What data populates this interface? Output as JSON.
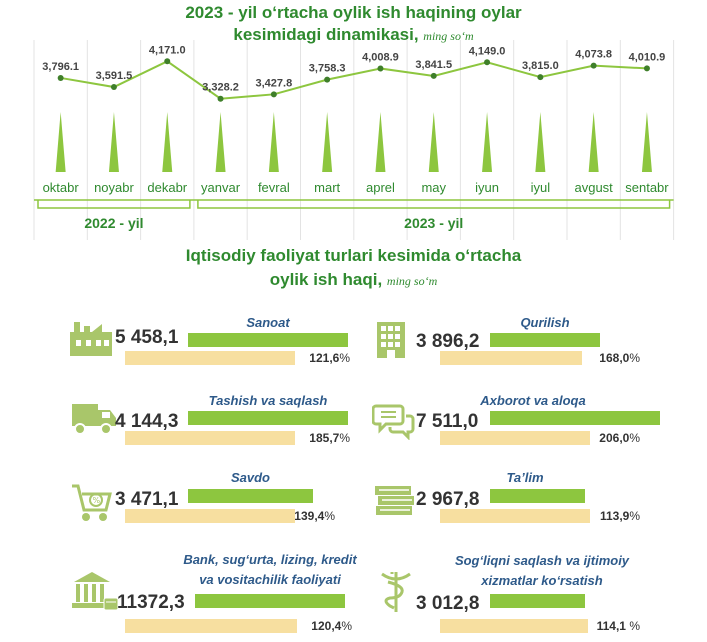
{
  "chart_data": {
    "type": "line",
    "title": "2023 - yil o‘rtacha oylik ish haqining oylar kesimidagi dinamikasi",
    "title_line1": "2023 - yil o‘rtacha oylik ish haqining oylar",
    "title_line2": "kesimidagi dinamikasi,",
    "unit": "ming so‘m",
    "categories": [
      "oktabr",
      "noyabr",
      "dekabr",
      "yanvar",
      "fevral",
      "mart",
      "aprel",
      "may",
      "iyun",
      "iyul",
      "avgust",
      "sentabr"
    ],
    "values": [
      3796.1,
      3591.5,
      4171.0,
      3328.2,
      3427.8,
      3758.3,
      4008.9,
      3841.5,
      4149.0,
      3815.0,
      4073.8,
      4010.9
    ],
    "value_labels": [
      "3,796.1",
      "3,591.5",
      "4,171.0",
      "3,328.2",
      "3,427.8",
      "3,758.3",
      "4,008.9",
      "3,841.5",
      "4,149.0",
      "3,815.0",
      "4,073.8",
      "4,010.9"
    ],
    "groups": [
      {
        "label": "2022 - yil",
        "from": 0,
        "to": 2
      },
      {
        "label": "2023 - yil",
        "from": 3,
        "to": 11
      }
    ],
    "colors": {
      "line": "#8dc63f",
      "point": "#3f7f2a",
      "spike": "#8dc63f",
      "text": "#2f8a2f"
    }
  },
  "industries": {
    "title_line1": "Iqtisodiy faoliyat turlari kesimida o‘rtacha",
    "title_line2": "oylik ish haqi,",
    "unit": "ming so‘m",
    "items": [
      {
        "name": "Sanoat",
        "value": "5 458,1",
        "pct": "121,6",
        "pct_value": 121.6,
        "icon": "factory-icon"
      },
      {
        "name": "Qurilish",
        "value": "3 896,2",
        "pct": "168,0",
        "pct_value": 168.0,
        "icon": "building-icon"
      },
      {
        "name": "Tashish va saqlash",
        "value": "4 144,3",
        "pct": "185,7",
        "pct_value": 185.7,
        "icon": "truck-icon"
      },
      {
        "name": "Axborot va aloqa",
        "value": "7 511,0",
        "pct": "206,0",
        "pct_value": 206.0,
        "icon": "chat-icon"
      },
      {
        "name": "Savdo",
        "value": "3 471,1",
        "pct": "139,4",
        "pct_value": 139.4,
        "icon": "cart-icon"
      },
      {
        "name": "Ta’lim",
        "value": "2 967,8",
        "pct": "113,9",
        "pct_value": 113.9,
        "icon": "books-icon"
      },
      {
        "name_line1": "Bank, sug‘urta, lizing, kredit",
        "name_line2": "va vositachilik faoliyati",
        "value": "11372,3",
        "pct": "120,4",
        "pct_value": 120.4,
        "icon": "bank-icon"
      },
      {
        "name_line1": "Sog‘liqni saqlash va ijtimoiy",
        "name_line2": "xizmatlar ko‘rsatish",
        "value": "3 012,8",
        "pct": "114,1",
        "pct_value": 114.1,
        "icon": "medical-icon"
      }
    ],
    "percent_sign": "%"
  }
}
